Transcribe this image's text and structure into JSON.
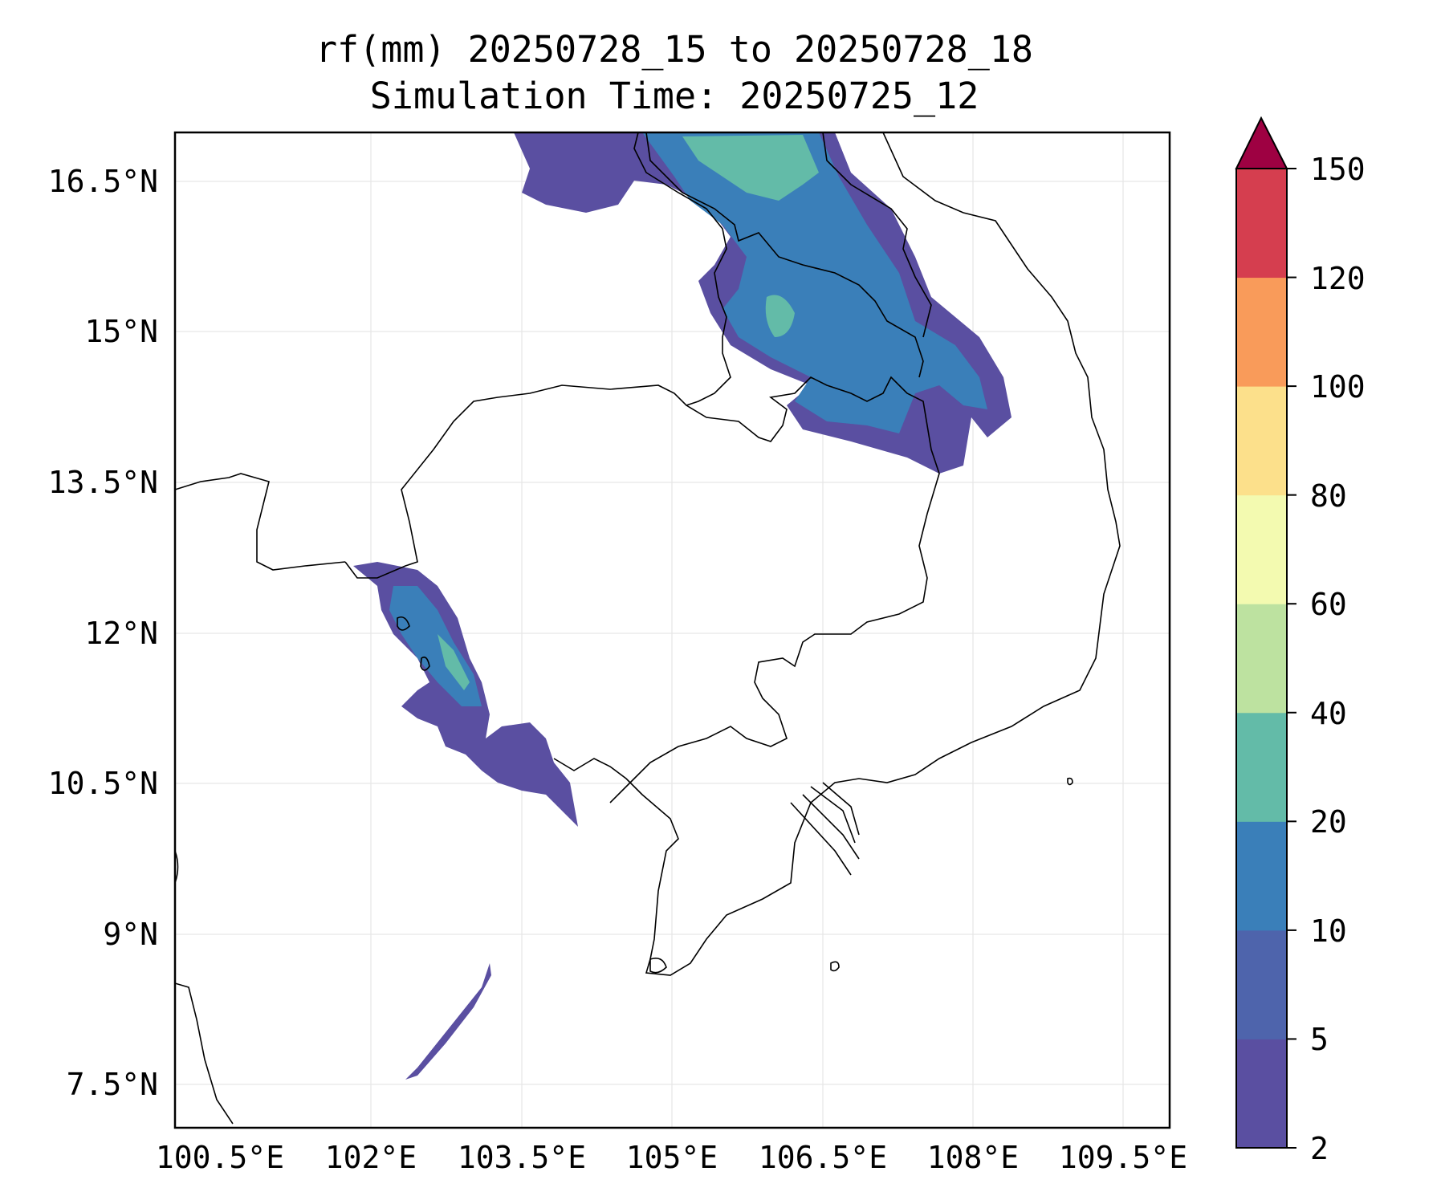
{
  "figure": {
    "title_line1": "rf(mm) 20250728_15 to 20250728_18",
    "title_line2": "Simulation Time: 20250725_12"
  },
  "map": {
    "lon_ticks": [
      "100.5°E",
      "102°E",
      "103.5°E",
      "105°E",
      "106.5°E",
      "108°E",
      "109.5°E"
    ],
    "lat_ticks": [
      "16.5°N",
      "15°N",
      "13.5°N",
      "12°N",
      "10.5°N",
      "9°N",
      "7.5°N"
    ],
    "extent": {
      "lon_min": 100.5,
      "lon_max": 110.0,
      "lat_min": 7.0,
      "lat_max": 17.0
    },
    "gridlines": true,
    "variable": "rf",
    "units": "mm"
  },
  "colorbar": {
    "ticks": [
      "2",
      "5",
      "10",
      "20",
      "40",
      "60",
      "80",
      "100",
      "120",
      "150"
    ],
    "levels": [
      2,
      5,
      10,
      20,
      40,
      60,
      80,
      100,
      120,
      150
    ],
    "colors": [
      "#5a4fa1",
      "#4e64ac",
      "#3a7fb9",
      "#63bba8",
      "#bde2a0",
      "#f3fab0",
      "#fce08b",
      "#f99b5a",
      "#d53e4f"
    ],
    "extend_color": "#9e0142",
    "extend": "max"
  }
}
